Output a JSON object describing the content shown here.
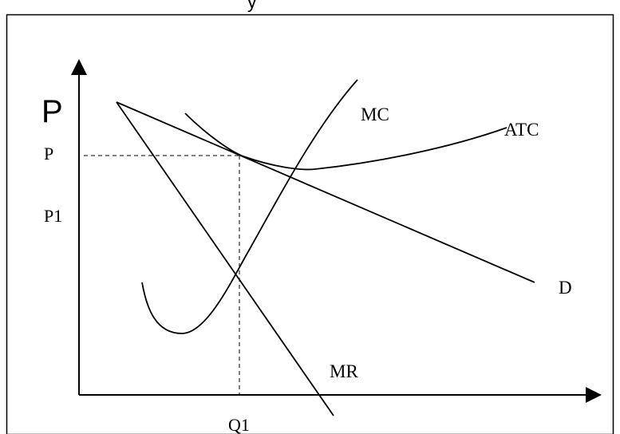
{
  "caption": {
    "visible_fragment": "у",
    "clipped": true
  },
  "y_axis": {
    "title": "P",
    "ticks": [
      "P",
      "P1"
    ]
  },
  "x_axis": {
    "ticks": [
      "Q1"
    ]
  },
  "curves": {
    "mc": "MC",
    "atc": "ATC",
    "demand": "D",
    "mr": "MR"
  },
  "colors": {
    "line": "#000000",
    "background": "#ffffff",
    "frame": "#000000"
  },
  "guides": {
    "dashed": true
  }
}
